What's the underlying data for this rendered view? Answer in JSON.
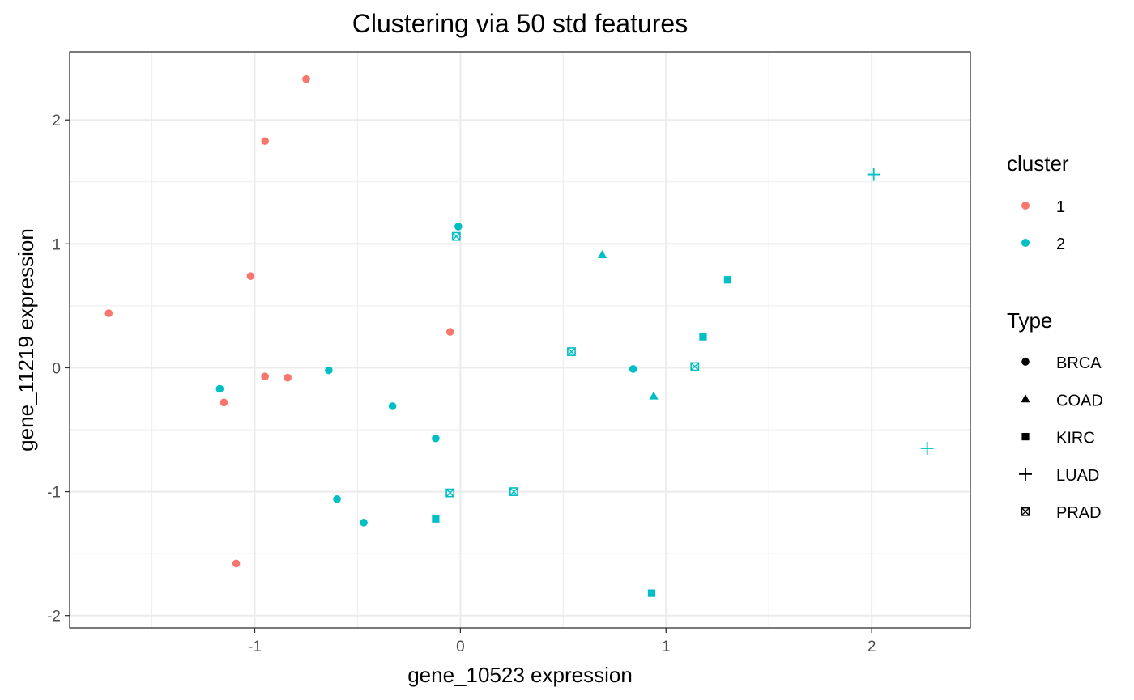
{
  "chart_data": {
    "type": "scatter",
    "title": "Clustering via 50 std features",
    "xlabel": "gene_10523 expression",
    "ylabel": "gene_11219 expression",
    "xlim": [
      -1.9,
      2.48
    ],
    "ylim": [
      -2.1,
      2.55
    ],
    "x_ticks": [
      -1,
      0,
      1,
      2
    ],
    "y_ticks": [
      -2,
      -1,
      0,
      1,
      2
    ],
    "x_tick_labels": [
      "-1",
      "0",
      "1",
      "2"
    ],
    "y_tick_labels": [
      "-2",
      "-1",
      "0",
      "1",
      "2"
    ],
    "grid": true,
    "theme": "bw",
    "legend_position": "right",
    "cluster_legend": {
      "title": "cluster",
      "items": [
        {
          "label": "1",
          "color": "#F8766D"
        },
        {
          "label": "2",
          "color": "#00BFC4"
        }
      ]
    },
    "type_legend": {
      "title": "Type",
      "items": [
        {
          "label": "BRCA",
          "shape": "circle"
        },
        {
          "label": "COAD",
          "shape": "triangle"
        },
        {
          "label": "KIRC",
          "shape": "square"
        },
        {
          "label": "LUAD",
          "shape": "plus"
        },
        {
          "label": "PRAD",
          "shape": "boxcross"
        }
      ]
    },
    "points": [
      {
        "x": -0.75,
        "y": 2.33,
        "cluster": "1",
        "type": "BRCA"
      },
      {
        "x": -0.95,
        "y": 1.83,
        "cluster": "1",
        "type": "BRCA"
      },
      {
        "x": -1.02,
        "y": 0.74,
        "cluster": "1",
        "type": "BRCA"
      },
      {
        "x": -1.71,
        "y": 0.44,
        "cluster": "1",
        "type": "BRCA"
      },
      {
        "x": -0.05,
        "y": 0.29,
        "cluster": "1",
        "type": "BRCA"
      },
      {
        "x": -0.95,
        "y": -0.07,
        "cluster": "1",
        "type": "BRCA"
      },
      {
        "x": -0.84,
        "y": -0.08,
        "cluster": "1",
        "type": "BRCA"
      },
      {
        "x": -1.15,
        "y": -0.28,
        "cluster": "1",
        "type": "BRCA"
      },
      {
        "x": -1.09,
        "y": -1.58,
        "cluster": "1",
        "type": "BRCA"
      },
      {
        "x": -0.01,
        "y": 1.14,
        "cluster": "2",
        "type": "BRCA"
      },
      {
        "x": -0.64,
        "y": -0.02,
        "cluster": "2",
        "type": "BRCA"
      },
      {
        "x": -1.17,
        "y": -0.17,
        "cluster": "2",
        "type": "BRCA"
      },
      {
        "x": -0.33,
        "y": -0.31,
        "cluster": "2",
        "type": "BRCA"
      },
      {
        "x": -0.12,
        "y": -0.57,
        "cluster": "2",
        "type": "BRCA"
      },
      {
        "x": -0.6,
        "y": -1.06,
        "cluster": "2",
        "type": "BRCA"
      },
      {
        "x": -0.47,
        "y": -1.25,
        "cluster": "2",
        "type": "BRCA"
      },
      {
        "x": 0.84,
        "y": -0.01,
        "cluster": "2",
        "type": "BRCA"
      },
      {
        "x": 0.69,
        "y": 0.91,
        "cluster": "2",
        "type": "COAD"
      },
      {
        "x": 0.94,
        "y": -0.23,
        "cluster": "2",
        "type": "COAD"
      },
      {
        "x": 1.3,
        "y": 0.71,
        "cluster": "2",
        "type": "KIRC"
      },
      {
        "x": 1.18,
        "y": 0.25,
        "cluster": "2",
        "type": "KIRC"
      },
      {
        "x": -0.12,
        "y": -1.22,
        "cluster": "2",
        "type": "KIRC"
      },
      {
        "x": 0.93,
        "y": -1.82,
        "cluster": "2",
        "type": "KIRC"
      },
      {
        "x": 2.01,
        "y": 1.56,
        "cluster": "2",
        "type": "LUAD"
      },
      {
        "x": 2.27,
        "y": -0.65,
        "cluster": "2",
        "type": "LUAD"
      },
      {
        "x": -0.02,
        "y": 1.06,
        "cluster": "2",
        "type": "PRAD"
      },
      {
        "x": 0.54,
        "y": 0.13,
        "cluster": "2",
        "type": "PRAD"
      },
      {
        "x": 1.14,
        "y": 0.01,
        "cluster": "2",
        "type": "PRAD"
      },
      {
        "x": -0.05,
        "y": -1.01,
        "cluster": "2",
        "type": "PRAD"
      },
      {
        "x": 0.26,
        "y": -1.0,
        "cluster": "2",
        "type": "PRAD"
      }
    ]
  }
}
